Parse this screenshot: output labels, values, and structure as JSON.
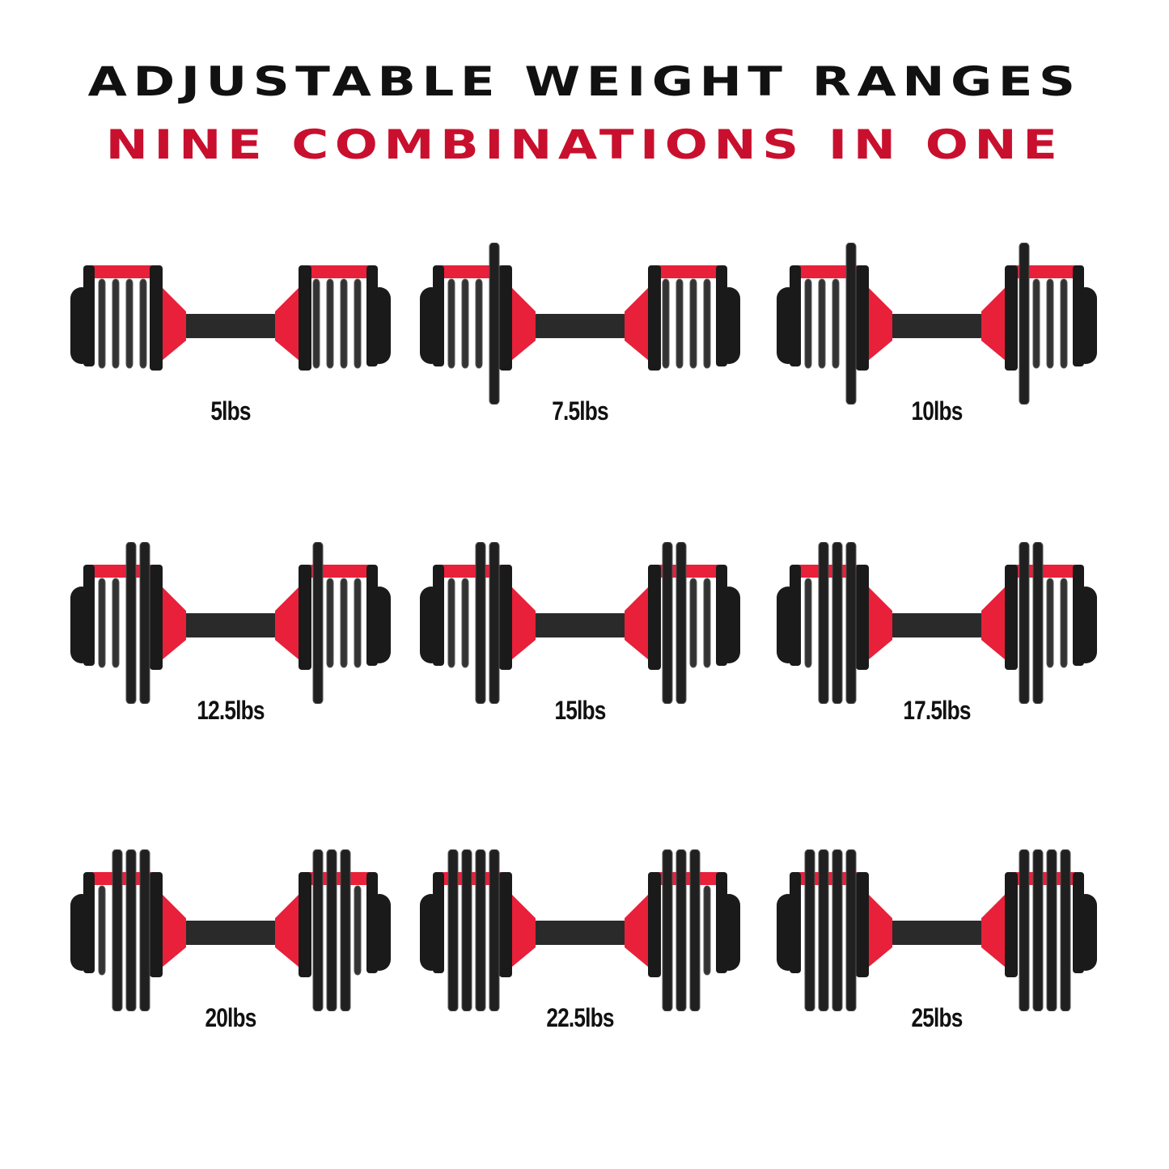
{
  "header": {
    "title": "ADJUSTABLE WEIGHT RANGES",
    "subtitle": "NINE COMBINATIONS IN ONE"
  },
  "colors": {
    "accent": "#c8102e",
    "dark": "#1a1a1a",
    "red_part": "#e8203a"
  },
  "dumbbells": [
    {
      "label": "5lbs"
    },
    {
      "label": "7.5lbs"
    },
    {
      "label": "10lbs"
    },
    {
      "label": "12.5lbs"
    },
    {
      "label": "15lbs"
    },
    {
      "label": "17.5lbs"
    },
    {
      "label": "20lbs"
    },
    {
      "label": "22.5lbs"
    },
    {
      "label": "25lbs"
    }
  ]
}
